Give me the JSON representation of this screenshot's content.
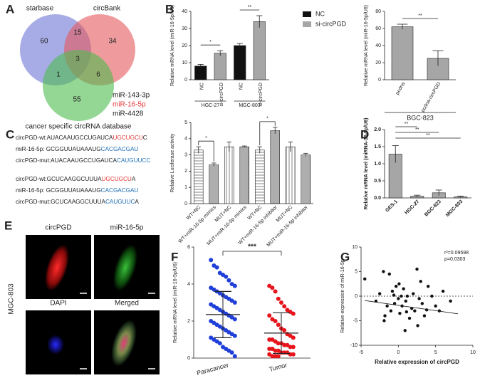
{
  "venn": {
    "panel_label": "A",
    "sets": [
      "starbase",
      "circBank",
      "cancer specific circRNA database"
    ],
    "counts": [
      60,
      15,
      34,
      3,
      1,
      6,
      55
    ],
    "mirnas": [
      "miR-143-3p",
      "miR-16-5p",
      "miR-4428"
    ]
  },
  "sequences": {
    "lines": [
      [
        {
          "text": "circPGD-wt:AUACAAUGCCUGAUCA",
          "color": "#222"
        },
        {
          "text": "UGCUGCU",
          "color": "#e53935"
        },
        {
          "text": "C",
          "color": "#222"
        }
      ],
      [
        {
          "text": "miR-16-5p: GCGGUUAUAAAUG",
          "color": "#222"
        },
        {
          "text": "CACGACGAU",
          "color": "#1e6fb8"
        }
      ],
      [
        {
          "text": "circPGD-mut:AUACAAUGCCUGAUCA",
          "color": "#222"
        },
        {
          "text": "CAUGUUCC",
          "color": "#1e6fb8"
        }
      ],
      [
        {
          "text": "circPGD-wt:GCUCAAGGCUUUA",
          "color": "#222"
        },
        {
          "text": "UGCUGCU",
          "color": "#e53935"
        },
        {
          "text": "A",
          "color": "#222"
        }
      ],
      [
        {
          "text": "miR-16-5p: GCGGUUAUAAAUG",
          "color": "#222"
        },
        {
          "text": "CACGACGAU",
          "color": "#1e6fb8"
        }
      ],
      [
        {
          "text": "circPGD-mut:GCUCAAGGCUUUA",
          "color": "#222"
        },
        {
          "text": "CAUGUUC",
          "color": "#1e6fb8"
        },
        {
          "text": "A",
          "color": "#222"
        }
      ]
    ]
  },
  "images": {
    "panel_label": "E",
    "cell_line": "MGC-803",
    "labels": [
      "circPGD",
      "miR-16-5p",
      "DAPI",
      "Merged"
    ]
  },
  "chart_data": [
    {
      "type": "bar",
      "panel_label": "B",
      "y_label": "Relative mRNA level (miR-16-5p/U6)",
      "categories": [
        "HGC-27",
        "MGC-803"
      ],
      "bar_labels": [
        "NC",
        "si-circPGD",
        "NC",
        "si-circPGD"
      ],
      "series": [
        {
          "name": "NC",
          "color": "#111111",
          "values": [
            8,
            20
          ],
          "errors": [
            1,
            1.2
          ]
        },
        {
          "name": "si-circPGD",
          "color": "#a6a6a6",
          "values": [
            15.5,
            34
          ],
          "errors": [
            1.5,
            3.5
          ]
        }
      ],
      "ylim": [
        0,
        40
      ],
      "yticks": [
        0,
        10,
        20,
        30,
        40
      ],
      "significance": [
        "*",
        "**"
      ]
    },
    {
      "type": "bar",
      "y_label": "Relative mRNA level (miR-16-5p/U6)",
      "group_label": "BGC-823",
      "categories": [
        "pcdna",
        "pcdna-circPGD"
      ],
      "values": [
        62,
        25
      ],
      "errors": [
        3,
        9
      ],
      "color": "#a6a6a6",
      "ylim": [
        0,
        80
      ],
      "yticks": [
        0,
        20,
        40,
        60,
        80
      ],
      "significance": [
        "**"
      ]
    },
    {
      "type": "bar",
      "panel_label": "C",
      "y_label": "Relative Luciferase activity",
      "categories": [
        "WT+NC",
        "WT+miR-16-5p mimics",
        "MUT+NC",
        "MUT+miR-16-5p mimics",
        "WT+NC",
        "WT+miR-16-5p inhibitor",
        "MUT+NC",
        "MUT+miR-16-5p inhibitor"
      ],
      "values": [
        3.3,
        2.4,
        3.5,
        3.5,
        3.3,
        4.5,
        3.5,
        3.0
      ],
      "errors": [
        0.2,
        0.1,
        0.3,
        0.05,
        0.2,
        0.2,
        0.3,
        0.1
      ],
      "patterns": [
        "hlines",
        "dense-hlines",
        "vlines",
        "dense-vlines",
        "hlines",
        "dense-hlines",
        "vlines",
        "dense-vlines"
      ],
      "ylim": [
        0,
        5
      ],
      "yticks": [
        0,
        1,
        2,
        3,
        4,
        5
      ],
      "significance": [
        "*",
        "*"
      ]
    },
    {
      "type": "bar",
      "panel_label": "D",
      "y_label": "Relative mRNA level (miRNA-16-5p/U6)",
      "categories": [
        "GES-1",
        "HGC-27",
        "BGC-823",
        "MGC-803"
      ],
      "values": [
        1.28,
        0.05,
        0.15,
        0.03
      ],
      "errors": [
        0.25,
        0.03,
        0.08,
        0.02
      ],
      "color": "#a6a6a6",
      "ylim": [
        0,
        2
      ],
      "yticks": [
        {
          "value": 0,
          "label": "0.0"
        },
        0.5,
        {
          "value": 1,
          "label": "1.0"
        },
        1.5,
        {
          "value": 2,
          "label": "2.0"
        }
      ],
      "significance": [
        "**",
        "**",
        "**"
      ]
    },
    {
      "type": "dot",
      "panel_label": "F",
      "y_label": "Relative mRNA level (miR-16-5p/U6)",
      "categories": [
        "Paracancer",
        "Tumor"
      ],
      "groups": [
        {
          "color": "#1f3fd8",
          "mean": 2.35,
          "sd": 1.25,
          "values": [
            5.3,
            5.0,
            4.9,
            4.6,
            4.5,
            4.4,
            4.2,
            4.0,
            3.9,
            3.8,
            3.7,
            3.6,
            3.5,
            3.4,
            3.3,
            3.2,
            3.1,
            3.0,
            2.9,
            2.8,
            2.7,
            2.6,
            2.5,
            2.4,
            2.3,
            2.2,
            2.1,
            2.0,
            1.9,
            1.8,
            1.7,
            1.6,
            1.5,
            1.4,
            1.3,
            1.2,
            1.1,
            1.0,
            0.9,
            0.8,
            0.6,
            0.5,
            0.4,
            0.3,
            0.1
          ]
        },
        {
          "color": "#e8141c",
          "mean": 1.35,
          "sd": 1.1,
          "values": [
            3.9,
            3.8,
            3.6,
            3.2,
            3.0,
            2.8,
            2.6,
            2.5,
            2.4,
            2.3,
            2.1,
            2.0,
            1.8,
            1.6,
            1.5,
            1.3,
            1.2,
            1.1,
            1.0,
            1.0,
            0.9,
            0.8,
            0.8,
            0.7,
            0.7,
            0.6,
            0.6,
            0.5,
            0.5,
            0.4,
            0.4,
            0.3,
            0.3,
            0.3,
            0.2,
            0.2,
            0.2,
            0.1,
            0.1,
            0.1
          ]
        }
      ],
      "ylim": [
        0,
        6
      ],
      "yticks": [
        0,
        2,
        4,
        6
      ],
      "significance": [
        "***"
      ]
    },
    {
      "type": "scatter",
      "panel_label": "G",
      "x_label": "Relative expression of circPGD",
      "y_label": "Relative expression of miR-16-5p",
      "x": [
        -4.5,
        -3,
        -2.5,
        -2,
        -1.8,
        -1.5,
        -1.2,
        -1,
        -0.8,
        -0.5,
        -0.3,
        0,
        0.2,
        0.4,
        0.5,
        0.7,
        0.9,
        1,
        1.2,
        1.5,
        1.8,
        2,
        2.2,
        2.5,
        2.8,
        3,
        3.2,
        3.5,
        4,
        4.5,
        5,
        5.5,
        6,
        7,
        -1.9,
        0.1,
        1.1,
        2.6,
        -0.6,
        3.8
      ],
      "y": [
        3.5,
        -1,
        0.5,
        5,
        -4,
        -2,
        4.5,
        -3,
        1,
        -1.5,
        2,
        -0.5,
        -3.5,
        0,
        -2,
        1.5,
        -7,
        -1,
        0,
        -4.5,
        -2.5,
        0.5,
        -3,
        5.5,
        -0.5,
        3,
        -1.5,
        -4,
        2,
        0,
        -2,
        -3,
        1,
        -1,
        -5,
        2.5,
        -3.2,
        -6,
        0.2,
        -2.8
      ],
      "fit_line": {
        "x": [
          -4.5,
          8
        ],
        "y": [
          -0.9,
          -3.6
        ]
      },
      "reference_line": 0,
      "annotations": [
        "r²=0.09598",
        "p=0.0303"
      ],
      "xlim": [
        -5,
        10
      ],
      "xticks": [
        -5,
        0,
        5,
        10
      ],
      "ylim": [
        -10,
        10
      ],
      "yticks": [
        -10,
        -5,
        0,
        5,
        10
      ]
    }
  ]
}
